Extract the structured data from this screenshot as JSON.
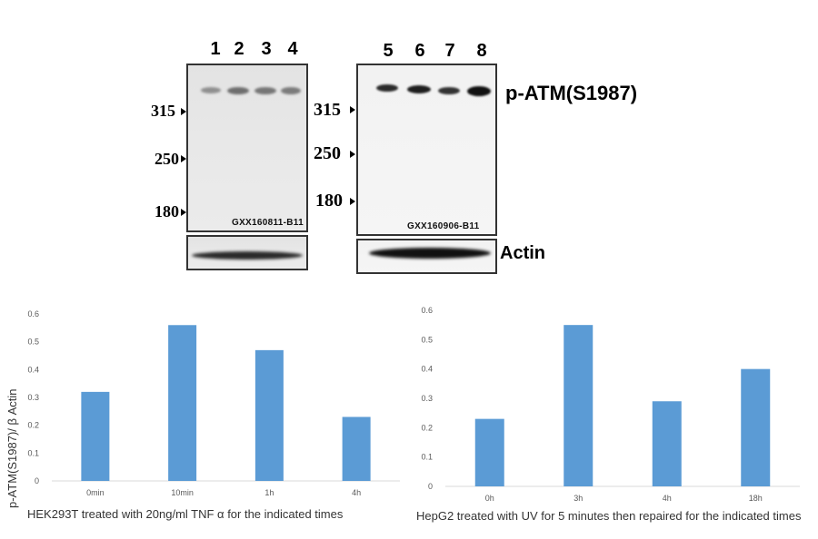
{
  "blot": {
    "lanes_left": [
      "1",
      "2",
      "3",
      "4"
    ],
    "lanes_right": [
      "5",
      "6",
      "7",
      "8"
    ],
    "mw_left": [
      "315",
      "250",
      "180"
    ],
    "mw_right": [
      "315",
      "250",
      "180"
    ],
    "watermark_left": "GXX160811-B11",
    "watermark_right": "GXX160906-B11",
    "target_label": "p-ATM(S1987)",
    "loading_label": "Actin",
    "band_color": "#1a1a1a"
  },
  "axis_label": "p-ATM(S1987)/ β Actin",
  "bar_color": "#5b9bd5",
  "chart_data": [
    {
      "type": "bar",
      "title": "HEK293T treated with 20ng/ml TNF α  for the indicated times",
      "xlabel": "",
      "ylabel": "p-ATM(S1987)/ β Actin",
      "categories": [
        "0min",
        "10min",
        "1h",
        "4h"
      ],
      "values": [
        0.32,
        0.56,
        0.47,
        0.23
      ],
      "yticks": [
        "0",
        "0.1",
        "0.2",
        "0.3",
        "0.4",
        "0.5",
        "0.6"
      ],
      "ylim": [
        0,
        0.6
      ],
      "grid": false
    },
    {
      "type": "bar",
      "title": "HepG2 treated with UV for 5 minutes then repaired for the indicated times",
      "xlabel": "",
      "ylabel": "",
      "categories": [
        "0h",
        "3h",
        "4h",
        "18h"
      ],
      "values": [
        0.23,
        0.55,
        0.29,
        0.4
      ],
      "yticks": [
        "0",
        "0.1",
        "0.2",
        "0.3",
        "0.4",
        "0.5",
        "0.6"
      ],
      "ylim": [
        0,
        0.6
      ],
      "grid": false
    }
  ]
}
